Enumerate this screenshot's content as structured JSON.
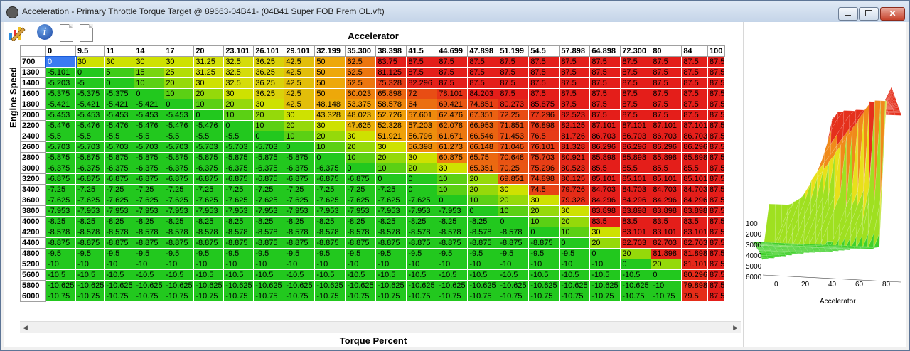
{
  "window": {
    "title": "Acceleration - Primary Throttle Torque Target @ 89663-04B41- (04B41 Super FOB Prem OL.vft)",
    "min_label": "",
    "max_label": "",
    "close_label": "✕"
  },
  "toolbar": {
    "icons": [
      "chart-edit-icon",
      "info-icon",
      "document-icon",
      "document-icon"
    ]
  },
  "table": {
    "x_axis_title": "Accelerator",
    "y_axis_title": "Engine Speed",
    "bottom_title": "Torque Percent",
    "columns": [
      "0",
      "9.5",
      "11",
      "14",
      "17",
      "20",
      "23.101",
      "26.101",
      "29.101",
      "32.199",
      "35.300",
      "38.398",
      "41.5",
      "44.699",
      "47.898",
      "51.199",
      "54.5",
      "57.898",
      "64.898",
      "72.300",
      "80",
      "84",
      "100"
    ],
    "rows": [
      {
        "rpm": "700",
        "values": [
          "0",
          "30",
          "30",
          "30",
          "30",
          "31.25",
          "32.5",
          "36.25",
          "42.5",
          "50",
          "62.5",
          "83.75",
          "87.5",
          "87.5",
          "87.5",
          "87.5",
          "87.5",
          "87.5",
          "87.5",
          "87.5",
          "87.5",
          "87.5",
          "87.5"
        ]
      },
      {
        "rpm": "1300",
        "values": [
          "-5.101",
          "0",
          "5",
          "15",
          "25",
          "31.25",
          "32.5",
          "36.25",
          "42.5",
          "50",
          "62.5",
          "81.125",
          "87.5",
          "87.5",
          "87.5",
          "87.5",
          "87.5",
          "87.5",
          "87.5",
          "87.5",
          "87.5",
          "87.5",
          "87.5"
        ]
      },
      {
        "rpm": "1400",
        "values": [
          "-5.203",
          "-5",
          "0",
          "10",
          "20",
          "30",
          "32.5",
          "36.25",
          "42.5",
          "50",
          "62.5",
          "75.328",
          "82.296",
          "87.5",
          "87.5",
          "87.5",
          "87.5",
          "87.5",
          "87.5",
          "87.5",
          "87.5",
          "87.5",
          "87.5"
        ]
      },
      {
        "rpm": "1600",
        "values": [
          "-5.375",
          "-5.375",
          "-5.375",
          "0",
          "10",
          "20",
          "30",
          "36.25",
          "42.5",
          "50",
          "60.023",
          "65.898",
          "72",
          "78.101",
          "84.203",
          "87.5",
          "87.5",
          "87.5",
          "87.5",
          "87.5",
          "87.5",
          "87.5",
          "87.5"
        ]
      },
      {
        "rpm": "1800",
        "values": [
          "-5.421",
          "-5.421",
          "-5.421",
          "-5.421",
          "0",
          "10",
          "20",
          "30",
          "42.5",
          "48.148",
          "53.375",
          "58.578",
          "64",
          "69.421",
          "74.851",
          "80.273",
          "85.875",
          "87.5",
          "87.5",
          "87.5",
          "87.5",
          "87.5",
          "87.5"
        ]
      },
      {
        "rpm": "2000",
        "values": [
          "-5.453",
          "-5.453",
          "-5.453",
          "-5.453",
          "-5.453",
          "0",
          "10",
          "20",
          "30",
          "43.328",
          "48.023",
          "52.726",
          "57.601",
          "62.476",
          "67.351",
          "72.25",
          "77.296",
          "82.523",
          "87.5",
          "87.5",
          "87.5",
          "87.5",
          "87.5"
        ]
      },
      {
        "rpm": "2200",
        "values": [
          "-5.476",
          "-5.476",
          "-5.476",
          "-5.476",
          "-5.476",
          "-5.476",
          "0",
          "10",
          "20",
          "30",
          "47.625",
          "52.328",
          "57.203",
          "62.078",
          "66.953",
          "71.851",
          "76.898",
          "82.125",
          "87.101",
          "87.101",
          "87.101",
          "87.101",
          "87.5"
        ]
      },
      {
        "rpm": "2400",
        "values": [
          "-5.5",
          "-5.5",
          "-5.5",
          "-5.5",
          "-5.5",
          "-5.5",
          "-5.5",
          "0",
          "10",
          "20",
          "30",
          "51.921",
          "56.796",
          "61.671",
          "66.546",
          "71.453",
          "76.5",
          "81.726",
          "86.703",
          "86.703",
          "86.703",
          "86.703",
          "87.5"
        ]
      },
      {
        "rpm": "2600",
        "values": [
          "-5.703",
          "-5.703",
          "-5.703",
          "-5.703",
          "-5.703",
          "-5.703",
          "-5.703",
          "-5.703",
          "0",
          "10",
          "20",
          "30",
          "56.398",
          "61.273",
          "66.148",
          "71.046",
          "76.101",
          "81.328",
          "86.296",
          "86.296",
          "86.296",
          "86.296",
          "87.5"
        ]
      },
      {
        "rpm": "2800",
        "values": [
          "-5.875",
          "-5.875",
          "-5.875",
          "-5.875",
          "-5.875",
          "-5.875",
          "-5.875",
          "-5.875",
          "-5.875",
          "0",
          "10",
          "20",
          "30",
          "60.875",
          "65.75",
          "70.648",
          "75.703",
          "80.921",
          "85.898",
          "85.898",
          "85.898",
          "85.898",
          "87.5"
        ]
      },
      {
        "rpm": "3000",
        "values": [
          "-6.375",
          "-6.375",
          "-6.375",
          "-6.375",
          "-6.375",
          "-6.375",
          "-6.375",
          "-6.375",
          "-6.375",
          "-6.375",
          "0",
          "10",
          "20",
          "30",
          "65.351",
          "70.25",
          "75.296",
          "80.523",
          "85.5",
          "85.5",
          "85.5",
          "85.5",
          "87.5"
        ]
      },
      {
        "rpm": "3200",
        "values": [
          "-6.875",
          "-6.875",
          "-6.875",
          "-6.875",
          "-6.875",
          "-6.875",
          "-6.875",
          "-6.875",
          "-6.875",
          "-6.875",
          "-6.875",
          "0",
          "0",
          "10",
          "20",
          "69.851",
          "74.898",
          "80.125",
          "85.101",
          "85.101",
          "85.101",
          "85.101",
          "87.5"
        ]
      },
      {
        "rpm": "3400",
        "values": [
          "-7.25",
          "-7.25",
          "-7.25",
          "-7.25",
          "-7.25",
          "-7.25",
          "-7.25",
          "-7.25",
          "-7.25",
          "-7.25",
          "-7.25",
          "-7.25",
          "0",
          "10",
          "20",
          "30",
          "74.5",
          "79.726",
          "84.703",
          "84.703",
          "84.703",
          "84.703",
          "87.5"
        ]
      },
      {
        "rpm": "3600",
        "values": [
          "-7.625",
          "-7.625",
          "-7.625",
          "-7.625",
          "-7.625",
          "-7.625",
          "-7.625",
          "-7.625",
          "-7.625",
          "-7.625",
          "-7.625",
          "-7.625",
          "-7.625",
          "0",
          "10",
          "20",
          "30",
          "79.328",
          "84.296",
          "84.296",
          "84.296",
          "84.296",
          "87.5"
        ]
      },
      {
        "rpm": "3800",
        "values": [
          "-7.953",
          "-7.953",
          "-7.953",
          "-7.953",
          "-7.953",
          "-7.953",
          "-7.953",
          "-7.953",
          "-7.953",
          "-7.953",
          "-7.953",
          "-7.953",
          "-7.953",
          "-7.953",
          "0",
          "10",
          "20",
          "30",
          "83.898",
          "83.898",
          "83.898",
          "83.898",
          "87.5"
        ]
      },
      {
        "rpm": "4000",
        "values": [
          "-8.25",
          "-8.25",
          "-8.25",
          "-8.25",
          "-8.25",
          "-8.25",
          "-8.25",
          "-8.25",
          "-8.25",
          "-8.25",
          "-8.25",
          "-8.25",
          "-8.25",
          "-8.25",
          "-8.25",
          "0",
          "10",
          "20",
          "83.5",
          "83.5",
          "83.5",
          "83.5",
          "87.5"
        ]
      },
      {
        "rpm": "4200",
        "values": [
          "-8.578",
          "-8.578",
          "-8.578",
          "-8.578",
          "-8.578",
          "-8.578",
          "-8.578",
          "-8.578",
          "-8.578",
          "-8.578",
          "-8.578",
          "-8.578",
          "-8.578",
          "-8.578",
          "-8.578",
          "-8.578",
          "0",
          "10",
          "30",
          "83.101",
          "83.101",
          "83.101",
          "87.5"
        ]
      },
      {
        "rpm": "4400",
        "values": [
          "-8.875",
          "-8.875",
          "-8.875",
          "-8.875",
          "-8.875",
          "-8.875",
          "-8.875",
          "-8.875",
          "-8.875",
          "-8.875",
          "-8.875",
          "-8.875",
          "-8.875",
          "-8.875",
          "-8.875",
          "-8.875",
          "-8.875",
          "0",
          "20",
          "82.703",
          "82.703",
          "82.703",
          "87.5"
        ]
      },
      {
        "rpm": "4800",
        "values": [
          "-9.5",
          "-9.5",
          "-9.5",
          "-9.5",
          "-9.5",
          "-9.5",
          "-9.5",
          "-9.5",
          "-9.5",
          "-9.5",
          "-9.5",
          "-9.5",
          "-9.5",
          "-9.5",
          "-9.5",
          "-9.5",
          "-9.5",
          "-9.5",
          "0",
          "20",
          "81.898",
          "81.898",
          "87.5"
        ]
      },
      {
        "rpm": "5200",
        "values": [
          "-10",
          "-10",
          "-10",
          "-10",
          "-10",
          "-10",
          "-10",
          "-10",
          "-10",
          "-10",
          "-10",
          "-10",
          "-10",
          "-10",
          "-10",
          "-10",
          "-10",
          "-10",
          "-10",
          "0",
          "20",
          "81.101",
          "87.5"
        ]
      },
      {
        "rpm": "5600",
        "values": [
          "-10.5",
          "-10.5",
          "-10.5",
          "-10.5",
          "-10.5",
          "-10.5",
          "-10.5",
          "-10.5",
          "-10.5",
          "-10.5",
          "-10.5",
          "-10.5",
          "-10.5",
          "-10.5",
          "-10.5",
          "-10.5",
          "-10.5",
          "-10.5",
          "-10.5",
          "-10.5",
          "0",
          "80.296",
          "87.5"
        ]
      },
      {
        "rpm": "5800",
        "values": [
          "-10.625",
          "-10.625",
          "-10.625",
          "-10.625",
          "-10.625",
          "-10.625",
          "-10.625",
          "-10.625",
          "-10.625",
          "-10.625",
          "-10.625",
          "-10.625",
          "-10.625",
          "-10.625",
          "-10.625",
          "-10.625",
          "-10.625",
          "-10.625",
          "-10.625",
          "-10.625",
          "-10",
          "79.898",
          "87.5"
        ]
      },
      {
        "rpm": "6000",
        "values": [
          "-10.75",
          "-10.75",
          "-10.75",
          "-10.75",
          "-10.75",
          "-10.75",
          "-10.75",
          "-10.75",
          "-10.75",
          "-10.75",
          "-10.75",
          "-10.75",
          "-10.75",
          "-10.75",
          "-10.75",
          "-10.75",
          "-10.75",
          "-10.75",
          "-10.75",
          "-10.75",
          "-10.75",
          "79.5",
          "87.5"
        ]
      }
    ]
  },
  "plot3d": {
    "x_axis_label": "Accelerator",
    "x_ticks": [
      "0",
      "20",
      "40",
      "60",
      "80",
      "100"
    ],
    "y_ticks": [
      "100",
      "2000",
      "3000",
      "4000",
      "5000",
      "6000"
    ],
    "colors": {
      "low": "#22c81e",
      "mid": "#e6ea10",
      "high": "#e4201a"
    }
  }
}
